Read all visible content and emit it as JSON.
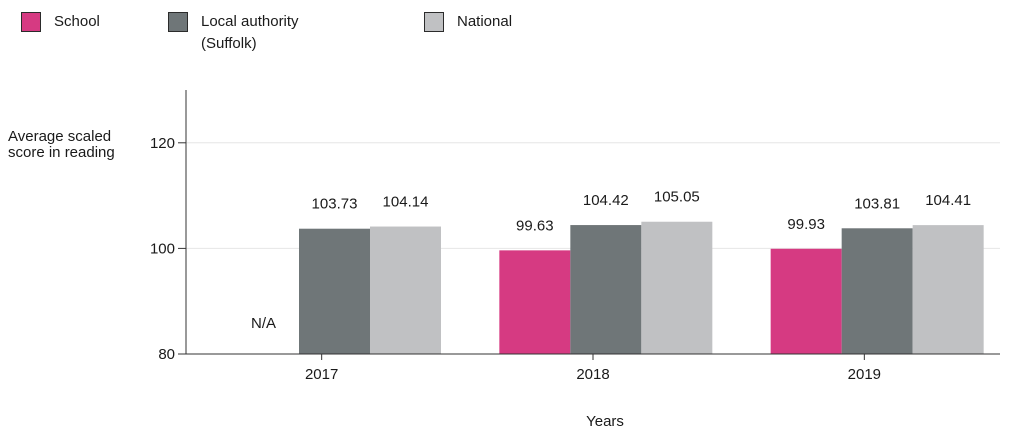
{
  "legend": {
    "items": [
      {
        "label": "School",
        "color": "#d63a82"
      },
      {
        "label": "Local authority (Suffolk)",
        "color": "#6f7678"
      },
      {
        "label": "National",
        "color": "#c0c1c3"
      }
    ]
  },
  "chart_data": {
    "type": "bar",
    "title": "",
    "xlabel": "Years",
    "ylabel": "Average scaled score in reading",
    "categories": [
      "2017",
      "2018",
      "2019"
    ],
    "series": [
      {
        "name": "School",
        "values": [
          null,
          99.63,
          99.93
        ],
        "labels": [
          "N/A",
          "99.63",
          "99.93"
        ],
        "color": "#d63a82"
      },
      {
        "name": "Local authority (Suffolk)",
        "values": [
          103.73,
          104.42,
          103.81
        ],
        "labels": [
          "103.73",
          "104.42",
          "103.81"
        ],
        "color": "#6f7678"
      },
      {
        "name": "National",
        "values": [
          104.14,
          105.05,
          104.41
        ],
        "labels": [
          "104.14",
          "105.05",
          "104.41"
        ],
        "color": "#c0c1c3"
      }
    ],
    "ylim": [
      80,
      130
    ],
    "yticks": [
      80,
      100,
      120
    ],
    "grid": true,
    "legend_position": "top-left"
  }
}
